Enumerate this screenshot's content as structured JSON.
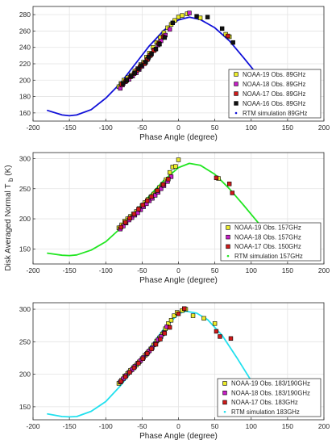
{
  "figure": {
    "ylabel_main": "Disk Averaged Normal T",
    "ylabel_sub": "b",
    "ylabel_unit": "(K)"
  },
  "chart_data": [
    {
      "type": "scatter",
      "xlabel": "Phase Angle (degree)",
      "xlim": [
        -200,
        200
      ],
      "ylim": [
        150,
        290
      ],
      "xticks": [
        -200,
        -150,
        -100,
        -50,
        0,
        50,
        100,
        150,
        200
      ],
      "yticks": [
        160,
        180,
        200,
        220,
        240,
        260,
        280
      ],
      "grid": true,
      "legend_position": "bottom-right",
      "model": {
        "name": "RTM simulation 89GHz",
        "color": "#1010d8",
        "x": [
          -180,
          -160,
          -150,
          -140,
          -120,
          -100,
          -80,
          -60,
          -40,
          -20,
          0,
          15,
          30,
          50,
          70,
          90,
          110,
          120
        ],
        "y": [
          163,
          157.5,
          156.5,
          157.5,
          164,
          178,
          196,
          219,
          242,
          261,
          273.5,
          277,
          274,
          264,
          248,
          227,
          205,
          195
        ]
      },
      "series": [
        {
          "name": "NOAA-19 Obs. 89GHz",
          "marker": "square",
          "color": "#ecec2a",
          "x": [
            -82,
            -79,
            -75,
            -70,
            -65,
            -60,
            -56,
            -52,
            -48,
            -44,
            -40,
            -35,
            -30,
            -25,
            -20,
            -15,
            -10,
            -5,
            0,
            5,
            12,
            30,
            65,
            70
          ],
          "y": [
            192,
            196,
            200,
            203,
            206,
            211,
            214,
            219,
            222,
            228,
            233,
            240,
            246,
            252,
            258,
            264,
            268,
            273,
            277,
            279,
            281,
            276,
            256,
            253
          ]
        },
        {
          "name": "NOAA-18 Obs. 89GHz",
          "marker": "square",
          "color": "#c81ec8",
          "x": [
            -80,
            -77,
            -73,
            -68,
            -63,
            -58,
            -54,
            -50,
            -46,
            -42,
            -38,
            -33,
            -28,
            -24,
            -18,
            -12,
            15
          ],
          "y": [
            190,
            194,
            198,
            201,
            205,
            209,
            213,
            217,
            221,
            226,
            231,
            237,
            243,
            248,
            255,
            262,
            282
          ]
        },
        {
          "name": "NOAA-17 Obs. 89GHz",
          "marker": "square",
          "color": "#d01a1a",
          "x": [
            -78,
            -72,
            -66,
            -61,
            -57,
            -53,
            -47,
            -43,
            -39,
            -34,
            -27,
            -21,
            68
          ],
          "y": [
            195,
            199,
            204,
            208,
            212,
            216,
            220,
            225,
            230,
            236,
            245,
            253,
            254
          ]
        },
        {
          "name": "NOAA-16 Obs. 89GHz",
          "marker": "square",
          "color": "#101010",
          "x": [
            -76,
            -71,
            -65,
            -60,
            -55,
            -51,
            -45,
            -41,
            -37,
            -31,
            -26,
            -19,
            -8,
            25,
            40,
            60,
            75
          ],
          "y": [
            196,
            200,
            205,
            209,
            214,
            218,
            222,
            228,
            232,
            238,
            244,
            252,
            270,
            278,
            277,
            263,
            246
          ]
        }
      ],
      "legend_rtm_marker": "dot"
    },
    {
      "type": "scatter",
      "xlabel": "Phase Angle (degree)",
      "xlim": [
        -200,
        200
      ],
      "ylim": [
        125,
        310
      ],
      "xticks": [
        -200,
        -150,
        -100,
        -50,
        0,
        50,
        100,
        150,
        200
      ],
      "yticks": [
        150,
        200,
        250,
        300
      ],
      "grid": true,
      "legend_position": "bottom-right",
      "model": {
        "name": "RTM simulation 157GHz",
        "color": "#22e622",
        "x": [
          -180,
          -160,
          -150,
          -140,
          -120,
          -100,
          -80,
          -60,
          -40,
          -20,
          0,
          15,
          30,
          50,
          70,
          90,
          110,
          120
        ],
        "y": [
          143,
          139.5,
          139,
          140,
          148,
          162,
          184,
          210,
          238,
          264,
          285,
          292,
          289,
          274,
          250,
          222,
          193,
          180
        ]
      },
      "series": [
        {
          "name": "NOAA-19 Obs. 157GHz",
          "marker": "square",
          "color": "#ecec2a",
          "x": [
            -82,
            -78,
            -74,
            -70,
            -66,
            -62,
            -58,
            -54,
            -50,
            -46,
            -42,
            -38,
            -34,
            -30,
            -26,
            -22,
            -17,
            -12,
            -8,
            -4,
            0,
            55
          ],
          "y": [
            185,
            190,
            196,
            200,
            204,
            208,
            212,
            217,
            222,
            227,
            232,
            236,
            241,
            246,
            252,
            257,
            265,
            277,
            286,
            287,
            298,
            267
          ]
        },
        {
          "name": "NOAA-18 Obs. 157GHz",
          "marker": "square",
          "color": "#c81ec8",
          "x": [
            -80,
            -76,
            -72,
            -68,
            -64,
            -60,
            -56,
            -52,
            -48,
            -44,
            -40,
            -36,
            -32,
            -28,
            -24,
            -20,
            -15,
            -10
          ],
          "y": [
            183,
            188,
            193,
            198,
            202,
            206,
            210,
            215,
            220,
            225,
            230,
            234,
            239,
            244,
            250,
            255,
            262,
            270
          ]
        },
        {
          "name": "NOAA-17 Obs. 150GHz",
          "marker": "square",
          "color": "#d01a1a",
          "x": [
            -79,
            -73,
            -67,
            -61,
            -55,
            -49,
            -43,
            -37,
            -29,
            -21,
            -14,
            52,
            70,
            74
          ],
          "y": [
            186,
            194,
            201,
            208,
            216,
            223,
            230,
            237,
            247,
            257,
            266,
            268,
            258,
            243
          ]
        }
      ],
      "legend_rtm_marker": "dot"
    },
    {
      "type": "scatter",
      "xlabel": "Phase Angle (degree)",
      "xlim": [
        -200,
        200
      ],
      "ylim": [
        130,
        310
      ],
      "xticks": [
        -200,
        -150,
        -100,
        -50,
        0,
        50,
        100,
        150,
        200
      ],
      "yticks": [
        150,
        200,
        250,
        300
      ],
      "grid": true,
      "legend_position": "bottom-right",
      "model": {
        "name": "RTM simulation 183GHz",
        "color": "#22e0ee",
        "x": [
          -180,
          -160,
          -150,
          -140,
          -120,
          -100,
          -80,
          -60,
          -40,
          -20,
          0,
          10,
          25,
          40,
          60,
          80,
          100,
          115
        ],
        "y": [
          139,
          135,
          134.5,
          135,
          143,
          158,
          182,
          210,
          240,
          270,
          293,
          297,
          294,
          284,
          260,
          226,
          190,
          165
        ]
      },
      "series": [
        {
          "name": "NOAA-19 Obs. 183/190GHz",
          "marker": "square",
          "color": "#ecec2a",
          "x": [
            -82,
            -78,
            -74,
            -70,
            -66,
            -62,
            -58,
            -54,
            -50,
            -46,
            -42,
            -38,
            -34,
            -30,
            -26,
            -22,
            -18,
            -14,
            -10,
            -6,
            -2,
            5,
            10,
            20,
            35,
            50
          ],
          "y": [
            186,
            191,
            197,
            201,
            206,
            210,
            214,
            219,
            224,
            229,
            234,
            239,
            245,
            251,
            256,
            262,
            270,
            278,
            283,
            290,
            295,
            298,
            300,
            290,
            286,
            278
          ]
        },
        {
          "name": "NOAA-18 Obs. 183/190GHz",
          "marker": "square",
          "color": "#c81ec8",
          "x": [
            -80,
            -76,
            -72,
            -68,
            -64,
            -60,
            -56,
            -52,
            -48,
            -44,
            -40,
            -36,
            -32,
            -28,
            -24,
            -20,
            -16
          ],
          "y": [
            188,
            193,
            198,
            203,
            207,
            212,
            217,
            221,
            226,
            231,
            236,
            241,
            247,
            253,
            258,
            264,
            273
          ]
        },
        {
          "name": "NOAA-17 Obs. 183GHz",
          "marker": "square",
          "color": "#d01a1a",
          "x": [
            -79,
            -73,
            -67,
            -61,
            -55,
            -49,
            -43,
            -37,
            -31,
            -25,
            -19,
            -12,
            0,
            8,
            52,
            57,
            72
          ],
          "y": [
            189,
            196,
            203,
            210,
            217,
            224,
            232,
            239,
            246,
            254,
            263,
            272,
            293,
            301,
            266,
            258,
            255
          ]
        }
      ],
      "legend_rtm_marker": "dot"
    }
  ]
}
